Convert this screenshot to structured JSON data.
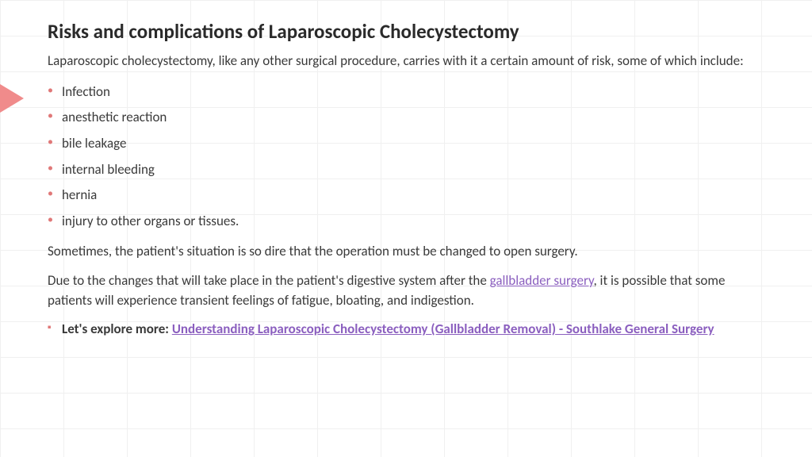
{
  "title": "Risks and complications of Laparoscopic Cholecystectomy",
  "intro": "Laparoscopic cholecystectomy, like any other surgical procedure, carries with it a certain amount of risk, some of which include:",
  "risks": [
    "Infection",
    "anesthetic reaction",
    "bile leakage",
    "internal bleeding",
    "hernia",
    "injury to other organs or tissues."
  ],
  "para1": "Sometimes, the patient's situation is so dire that the operation must be changed to open surgery.",
  "para2_pre": "Due to the changes that will take place in the patient's digestive system after the ",
  "para2_link": "gallbladder surgery",
  "para2_post": ", it is possible that some patients will experience transient feelings of fatigue, bloating, and indigestion.",
  "explore_pre": "Let's explore more: ",
  "explore_link": "Understanding Laparoscopic Cholecystectomy (Gallbladder Removal) - Southlake General Surgery",
  "colors": {
    "accent": "#f08b8b",
    "bullet": "#e07878",
    "link": "#8b5fbf",
    "text": "#3a3a3a",
    "heading": "#2a2a2a",
    "grid": "#f0f0f0",
    "bg": "#ffffff"
  },
  "fonts": {
    "title_size_pt": 19,
    "body_size_pt": 13,
    "title_weight": 700,
    "body_weight": 400
  }
}
